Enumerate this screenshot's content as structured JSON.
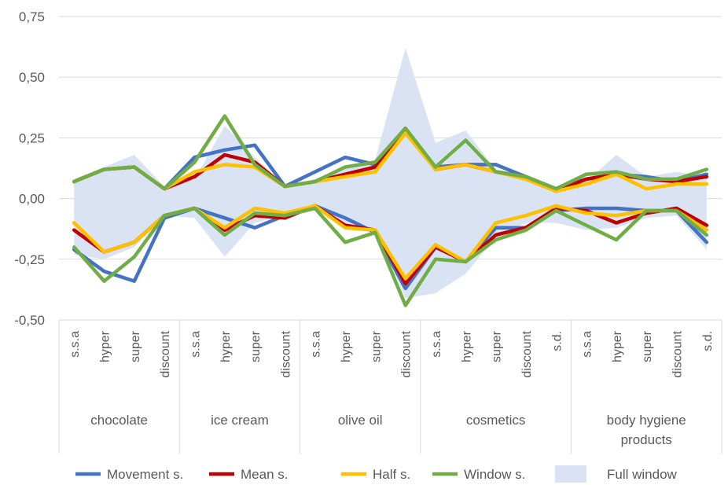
{
  "chart_data": {
    "type": "line",
    "title": "",
    "xlabel": "",
    "ylabel": "",
    "ylim": [
      -0.5,
      0.75
    ],
    "y_ticks": [
      "-0,50",
      "-0,25",
      "0,00",
      "0,25",
      "0,50",
      "0,75"
    ],
    "grid": true,
    "legend_position": "bottom",
    "groups": [
      {
        "label": "chocolate",
        "categories": [
          "s.s.a",
          "hyper",
          "super",
          "discount"
        ]
      },
      {
        "label": "ice cream",
        "categories": [
          "s.s.a",
          "hyper",
          "super",
          "discount"
        ]
      },
      {
        "label": "olive oil",
        "categories": [
          "s.s.a",
          "hyper",
          "super",
          "discount"
        ]
      },
      {
        "label": "cosmetics",
        "categories": [
          "s.s.a",
          "hyper",
          "super",
          "discount",
          "s.d."
        ]
      },
      {
        "label": "body hygiene products",
        "categories": [
          "s.s.a",
          "hyper",
          "super",
          "discount",
          "s.d."
        ]
      }
    ],
    "area_series": {
      "name": "Full window",
      "color": "#dae3f3",
      "upper": [
        0.08,
        0.13,
        0.18,
        0.05,
        0.08,
        0.3,
        0.17,
        0.05,
        0.08,
        0.13,
        0.16,
        0.62,
        0.23,
        0.28,
        0.12,
        0.1,
        0.05,
        0.07,
        0.18,
        0.09,
        0.11,
        0.09
      ],
      "lower": [
        -0.23,
        -0.25,
        -0.2,
        -0.07,
        -0.08,
        -0.24,
        -0.1,
        -0.07,
        -0.04,
        -0.12,
        -0.12,
        -0.41,
        -0.39,
        -0.31,
        -0.16,
        -0.1,
        -0.1,
        -0.13,
        -0.12,
        -0.08,
        -0.07,
        -0.21
      ]
    },
    "series": [
      {
        "name": "Movement s.",
        "color": "#4472c4",
        "upper": [
          0.07,
          0.12,
          0.13,
          0.04,
          0.17,
          0.2,
          0.22,
          0.05,
          0.11,
          0.17,
          0.14,
          0.28,
          0.13,
          0.14,
          0.14,
          0.09,
          0.04,
          0.08,
          0.1,
          0.09,
          0.07,
          0.1
        ],
        "lower": [
          -0.21,
          -0.3,
          -0.34,
          -0.08,
          -0.04,
          -0.08,
          -0.12,
          -0.07,
          -0.03,
          -0.08,
          -0.14,
          -0.37,
          -0.2,
          -0.26,
          -0.12,
          -0.12,
          -0.05,
          -0.04,
          -0.04,
          -0.05,
          -0.05,
          -0.18
        ]
      },
      {
        "name": "Mean s.",
        "color": "#c00000",
        "upper": [
          0.07,
          0.12,
          0.13,
          0.04,
          0.09,
          0.18,
          0.15,
          0.05,
          0.07,
          0.1,
          0.13,
          0.28,
          0.12,
          0.14,
          0.11,
          0.09,
          0.03,
          0.08,
          0.1,
          0.08,
          0.07,
          0.09
        ],
        "lower": [
          -0.13,
          -0.22,
          -0.18,
          -0.07,
          -0.04,
          -0.13,
          -0.07,
          -0.08,
          -0.03,
          -0.11,
          -0.13,
          -0.35,
          -0.2,
          -0.26,
          -0.15,
          -0.12,
          -0.04,
          -0.05,
          -0.1,
          -0.06,
          -0.04,
          -0.11
        ]
      },
      {
        "name": "Half s.",
        "color": "#ffc000",
        "upper": [
          0.07,
          0.12,
          0.13,
          0.04,
          0.11,
          0.14,
          0.13,
          0.05,
          0.07,
          0.09,
          0.11,
          0.27,
          0.12,
          0.14,
          0.11,
          0.08,
          0.03,
          0.06,
          0.1,
          0.04,
          0.06,
          0.06
        ],
        "lower": [
          -0.1,
          -0.22,
          -0.18,
          -0.07,
          -0.04,
          -0.12,
          -0.04,
          -0.06,
          -0.03,
          -0.12,
          -0.13,
          -0.33,
          -0.19,
          -0.26,
          -0.1,
          -0.07,
          -0.03,
          -0.06,
          -0.07,
          -0.05,
          -0.05,
          -0.13
        ]
      },
      {
        "name": "Window s.",
        "color": "#70ad47",
        "upper": [
          0.07,
          0.12,
          0.13,
          0.04,
          0.15,
          0.34,
          0.14,
          0.05,
          0.07,
          0.13,
          0.15,
          0.29,
          0.13,
          0.24,
          0.11,
          0.09,
          0.04,
          0.1,
          0.11,
          0.08,
          0.08,
          0.12
        ],
        "lower": [
          -0.2,
          -0.34,
          -0.24,
          -0.07,
          -0.04,
          -0.15,
          -0.06,
          -0.07,
          -0.04,
          -0.18,
          -0.14,
          -0.44,
          -0.25,
          -0.26,
          -0.17,
          -0.13,
          -0.05,
          -0.11,
          -0.17,
          -0.05,
          -0.05,
          -0.15
        ]
      }
    ]
  },
  "legend": [
    {
      "label": "Movement s.",
      "color": "#4472c4",
      "kind": "line"
    },
    {
      "label": "Mean s.",
      "color": "#c00000",
      "kind": "line"
    },
    {
      "label": "Half s.",
      "color": "#ffc000",
      "kind": "line"
    },
    {
      "label": "Window s.",
      "color": "#70ad47",
      "kind": "line"
    },
    {
      "label": "Full window",
      "color": "#dae3f3",
      "kind": "area"
    }
  ]
}
